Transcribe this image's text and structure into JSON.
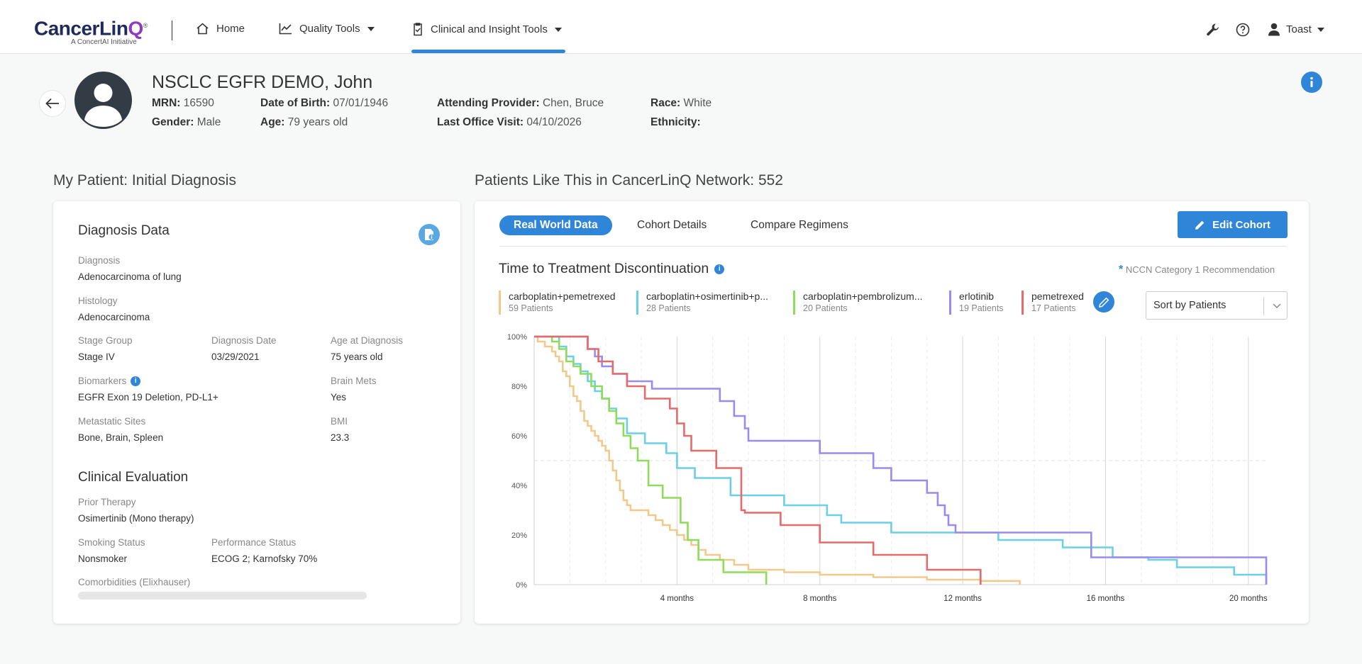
{
  "header": {
    "logo_main_a": "CancerLin",
    "logo_main_b": "Q",
    "logo_tm": "®",
    "logo_sub": "A ConcertAI Initiative",
    "nav": {
      "home": "Home",
      "quality_tools": "Quality Tools",
      "clinical_tools": "Clinical and Insight Tools"
    },
    "user_name": "Toast"
  },
  "patient": {
    "name": "NSCLC EGFR DEMO, John",
    "mrn_label": "MRN:",
    "mrn": "16590",
    "dob_label": "Date of Birth:",
    "dob": "07/01/1946",
    "attending_label": "Attending Provider:",
    "attending": "Chen, Bruce",
    "race_label": "Race:",
    "race": "White",
    "gender_label": "Gender:",
    "gender": "Male",
    "age_label": "Age:",
    "age": "79 years old",
    "last_visit_label": "Last Office Visit:",
    "last_visit": "04/10/2026",
    "ethnicity_label": "Ethnicity:",
    "ethnicity": ""
  },
  "left": {
    "section_title": "My Patient: Initial Diagnosis",
    "diag_header": "Diagnosis Data",
    "diagnosis_label": "Diagnosis",
    "diagnosis": "Adenocarcinoma of lung",
    "histology_label": "Histology",
    "histology": "Adenocarcinoma",
    "stage_label": "Stage Group",
    "stage": "Stage IV",
    "diag_date_label": "Diagnosis Date",
    "diag_date": "03/29/2021",
    "age_diag_label": "Age at Diagnosis",
    "age_diag": "75 years old",
    "biomarkers_label": "Biomarkers",
    "biomarkers": "EGFR Exon 19 Deletion, PD-L1+",
    "brain_label": "Brain Mets",
    "brain": "Yes",
    "mets_label": "Metastatic Sites",
    "mets": "Bone, Brain, Spleen",
    "bmi_label": "BMI",
    "bmi": "23.3",
    "clin_header": "Clinical Evaluation",
    "prior_label": "Prior Therapy",
    "prior": "Osimertinib (Mono therapy)",
    "smoking_label": "Smoking Status",
    "smoking": "Nonsmoker",
    "perf_label": "Performance Status",
    "perf": "ECOG 2; Karnofsky 70%",
    "comorb_label": "Comorbidities (Elixhauser)"
  },
  "right": {
    "section_title": "Patients Like This in CancerLinQ Network: 552",
    "tabs": [
      "Real World Data",
      "Cohort Details",
      "Compare Regimens"
    ],
    "edit_cohort": "Edit Cohort",
    "chart_title": "Time to Treatment Discontinuation",
    "nccn_star": "*",
    "nccn_text": "NCCN Category 1 Recommendation",
    "sort_value": "Sort by Patients",
    "legend": [
      {
        "name": "carboplatin+pemetrexed",
        "count": "59 Patients",
        "color": "#f3c98b"
      },
      {
        "name": "carboplatin+osimertinib+p...",
        "count": "28 Patients",
        "color": "#6ccfe6"
      },
      {
        "name": "carboplatin+pembrolizum...",
        "count": "20 Patients",
        "color": "#8fdc5a"
      },
      {
        "name": "erlotinib",
        "count": "19 Patients",
        "color": "#9a8bf0"
      },
      {
        "name": "pemetrexed",
        "count": "17 Patients",
        "color": "#e56b6b"
      }
    ]
  },
  "chart_data": {
    "type": "line",
    "title": "Time to Treatment Discontinuation",
    "xlabel": "",
    "ylabel": "",
    "xlim": [
      0,
      20.5
    ],
    "ylim": [
      0,
      100
    ],
    "x_ticks": [
      4,
      8,
      12,
      16,
      20
    ],
    "x_tick_labels": [
      "4 months",
      "8 months",
      "12 months",
      "16 months",
      "20 months"
    ],
    "y_ticks": [
      0,
      20,
      40,
      60,
      80,
      100
    ],
    "y_tick_labels": [
      "0%",
      "20%",
      "40%",
      "60%",
      "80%",
      "100%"
    ],
    "grid": true,
    "legend_position": "top",
    "series": [
      {
        "name": "carboplatin+pemetrexed",
        "color": "#f3c98b",
        "x": [
          0,
          0.1,
          0.3,
          0.5,
          0.6,
          0.7,
          0.8,
          0.9,
          1.0,
          1.1,
          1.2,
          1.3,
          1.4,
          1.5,
          1.6,
          1.7,
          1.8,
          1.9,
          2.0,
          2.1,
          2.2,
          2.3,
          2.4,
          2.5,
          2.6,
          2.7,
          2.8,
          3.0,
          3.2,
          3.4,
          3.6,
          3.8,
          4.0,
          4.2,
          4.4,
          4.6,
          4.8,
          5.2,
          5.6,
          6.0,
          7.0,
          8.0,
          9.5,
          11.0,
          12.5,
          13.6,
          13.6
        ],
        "y": [
          100,
          98,
          96,
          94,
          92,
          90,
          86,
          84,
          80,
          76,
          74,
          70,
          66,
          64,
          62,
          60,
          58,
          56,
          54,
          50,
          46,
          42,
          38,
          34,
          32,
          30,
          30,
          30,
          28,
          26,
          24,
          22,
          20,
          18,
          16,
          14,
          12,
          10,
          8,
          6,
          5,
          4,
          3,
          2,
          1.5,
          1.5,
          0
        ]
      },
      {
        "name": "carboplatin+osimertinib+p...",
        "color": "#6ccfe6",
        "x": [
          0,
          0.7,
          0.9,
          1.1,
          1.3,
          1.5,
          1.7,
          1.9,
          2.1,
          2.3,
          2.6,
          3.1,
          3.7,
          4.0,
          4.5,
          5.5,
          7.0,
          8.2,
          8.6,
          10.0,
          12.5,
          13.0,
          14.8,
          16.2,
          17.2,
          18.0,
          19.6,
          20.5,
          20.5
        ],
        "y": [
          100,
          96,
          92,
          89,
          86,
          82,
          78,
          75,
          71,
          67,
          61,
          57,
          53,
          47,
          43,
          36,
          32,
          28,
          25,
          21,
          21,
          18,
          15,
          11,
          10,
          7,
          4,
          4,
          0
        ]
      },
      {
        "name": "carboplatin+pembrolizum...",
        "color": "#8fdc5a",
        "x": [
          0,
          0.5,
          0.7,
          0.9,
          1.1,
          1.3,
          1.6,
          1.9,
          2.1,
          2.3,
          2.5,
          2.7,
          2.9,
          3.2,
          3.6,
          4.1,
          4.3,
          4.6,
          5.3,
          6.5,
          6.5
        ],
        "y": [
          100,
          98,
          95,
          90,
          88,
          85,
          80,
          75,
          70,
          65,
          60,
          55,
          50,
          40,
          35,
          25,
          18,
          10,
          5,
          5,
          0
        ]
      },
      {
        "name": "erlotinib",
        "color": "#9a8bf0",
        "x": [
          0,
          0.5,
          1.3,
          1.5,
          1.7,
          1.9,
          2.2,
          2.6,
          3.3,
          4.2,
          5.2,
          5.6,
          5.9,
          6.0,
          7.5,
          8.0,
          8.6,
          9.5,
          10.0,
          10.8,
          11.0,
          11.3,
          11.5,
          11.6,
          11.8,
          15.4,
          15.6,
          20.5,
          20.5
        ],
        "y": [
          100,
          100,
          100,
          95,
          92,
          88,
          85,
          82,
          79,
          79,
          74,
          68,
          63,
          58,
          58,
          53,
          53,
          47,
          42,
          42,
          37,
          32,
          28,
          24,
          21,
          21,
          11,
          11,
          0
        ]
      },
      {
        "name": "pemetrexed",
        "color": "#e56b6b",
        "x": [
          0,
          1.3,
          1.5,
          1.8,
          2.2,
          2.6,
          3.1,
          3.8,
          4.0,
          4.2,
          4.4,
          5.1,
          5.8,
          5.8,
          5.9,
          6.9,
          8.0,
          9.5,
          11.0,
          12.5,
          12.5
        ],
        "y": [
          100,
          100,
          95,
          90,
          85,
          80,
          75,
          71,
          65,
          60,
          54,
          47,
          40,
          30,
          29,
          24,
          17,
          12,
          6,
          6,
          0
        ]
      }
    ]
  }
}
